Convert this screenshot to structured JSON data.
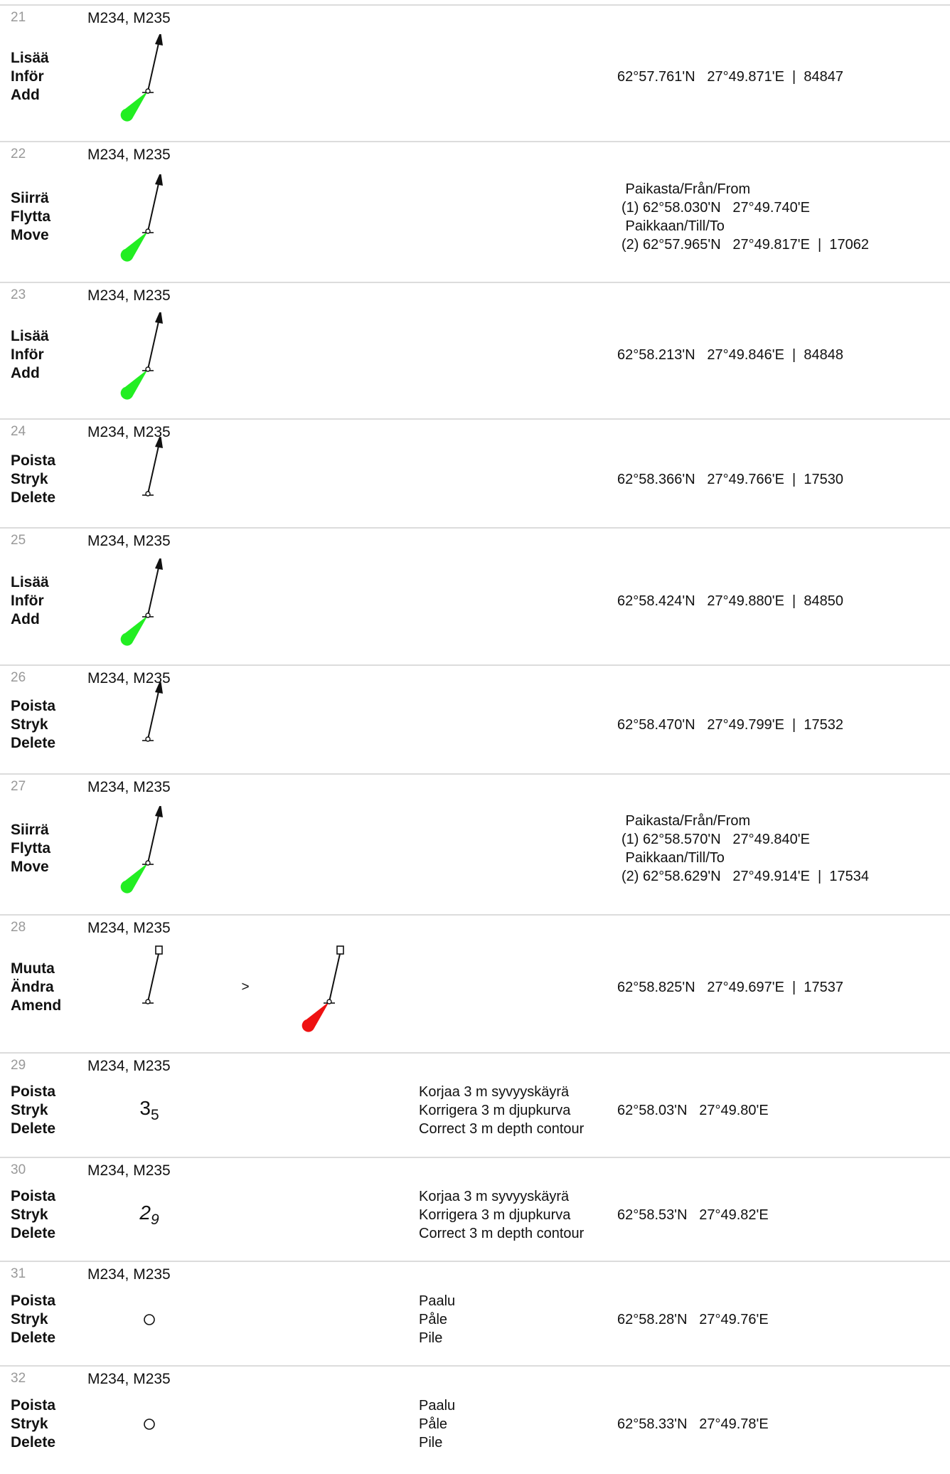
{
  "rows": [
    {
      "number": "21",
      "charts": "M234, M235",
      "action": [
        "Lisää",
        "Inför",
        "Add"
      ],
      "symbol": "beacon-light-green",
      "position": [
        "62°57.761'N   27°49.871'E  |  84847"
      ]
    },
    {
      "number": "22",
      "charts": "M234, M235",
      "action": [
        "Siirrä",
        "Flytta",
        "Move"
      ],
      "symbol": "beacon-light-green",
      "position": [
        " Paikasta/Från/From",
        "(1) 62°58.030'N   27°49.740'E",
        " Paikkaan/Till/To",
        "(2) 62°57.965'N   27°49.817'E  |  17062"
      ]
    },
    {
      "number": "23",
      "charts": "M234, M235",
      "action": [
        "Lisää",
        "Inför",
        "Add"
      ],
      "symbol": "beacon-light-green",
      "position": [
        "62°58.213'N   27°49.846'E  |  84848"
      ]
    },
    {
      "number": "24",
      "charts": "M234, M235",
      "action": [
        "Poista",
        "Stryk",
        "Delete"
      ],
      "symbol": "beacon",
      "position": [
        "62°58.366'N   27°49.766'E  |  17530"
      ]
    },
    {
      "number": "25",
      "charts": "M234, M235",
      "action": [
        "Lisää",
        "Inför",
        "Add"
      ],
      "symbol": "beacon-light-green",
      "position": [
        "62°58.424'N   27°49.880'E  |  84850"
      ]
    },
    {
      "number": "26",
      "charts": "M234, M235",
      "action": [
        "Poista",
        "Stryk",
        "Delete"
      ],
      "symbol": "beacon",
      "position": [
        "62°58.470'N   27°49.799'E  |  17532"
      ]
    },
    {
      "number": "27",
      "charts": "M234, M235",
      "action": [
        "Siirrä",
        "Flytta",
        "Move"
      ],
      "symbol": "beacon-light-green",
      "position": [
        " Paikasta/Från/From",
        "(1) 62°58.570'N   27°49.840'E",
        " Paikkaan/Till/To",
        "(2) 62°58.629'N   27°49.914'E  |  17534"
      ]
    },
    {
      "number": "28",
      "charts": "M234, M235",
      "action": [
        "Muuta",
        "Ändra",
        "Amend"
      ],
      "symbol": "flag-beacon",
      "arrow": ">",
      "symbol2": "flag-beacon-light-red",
      "position": [
        "62°58.825'N   27°49.697'E  |  17537"
      ]
    },
    {
      "number": "29",
      "charts": "M234, M235",
      "action": [
        "Poista",
        "Stryk",
        "Delete"
      ],
      "sounding": {
        "main": "3",
        "sub": "5",
        "italic": false
      },
      "description": [
        "Korjaa 3 m syvyyskäyrä",
        "Korrigera 3 m djupkurva",
        "Correct 3 m depth contour"
      ],
      "position": [
        "62°58.03'N   27°49.80'E"
      ]
    },
    {
      "number": "30",
      "charts": "M234, M235",
      "action": [
        "Poista",
        "Stryk",
        "Delete"
      ],
      "sounding": {
        "main": "2",
        "sub": "9",
        "italic": true
      },
      "description": [
        "Korjaa 3 m syvyyskäyrä",
        "Korrigera 3 m djupkurva",
        "Correct 3 m depth contour"
      ],
      "position": [
        "62°58.53'N   27°49.82'E"
      ]
    },
    {
      "number": "31",
      "charts": "M234, M235",
      "action": [
        "Poista",
        "Stryk",
        "Delete"
      ],
      "symbol": "pile-circle",
      "description": [
        "Paalu",
        "Påle",
        "Pile"
      ],
      "position": [
        "62°58.28'N   27°49.76'E"
      ]
    },
    {
      "number": "32",
      "charts": "M234, M235",
      "action": [
        "Poista",
        "Stryk",
        "Delete"
      ],
      "symbol": "pile-circle",
      "description": [
        "Paalu",
        "Påle",
        "Pile"
      ],
      "position": [
        "62°58.33'N   27°49.78'E"
      ]
    }
  ],
  "colors": {
    "light_green": "#22ee22",
    "light_red": "#ee1111",
    "row_border": "#dcdcdc",
    "number_gray": "#999999"
  }
}
